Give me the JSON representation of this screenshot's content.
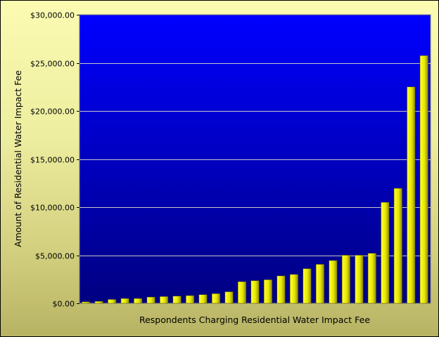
{
  "chart_data": {
    "type": "bar",
    "title": "",
    "xlabel": "Respondents Charging Residential Water Impact Fee",
    "ylabel": "Amount of Residential Water Impact Fee",
    "ylim": [
      0,
      30000
    ],
    "y_ticks": [
      {
        "value": 0,
        "label": "$0.00"
      },
      {
        "value": 5000,
        "label": "$5,000.00"
      },
      {
        "value": 10000,
        "label": "$10,000.00"
      },
      {
        "value": 15000,
        "label": "$15,000.00"
      },
      {
        "value": 20000,
        "label": "$20,000.00"
      },
      {
        "value": 25000,
        "label": "$25,000.00"
      },
      {
        "value": 30000,
        "label": "$30,000.00"
      }
    ],
    "values": [
      150,
      200,
      400,
      500,
      500,
      650,
      700,
      750,
      800,
      900,
      1000,
      1200,
      2250,
      2350,
      2450,
      2850,
      3000,
      3600,
      4050,
      4450,
      5000,
      5000,
      5200,
      10500,
      11950,
      22500,
      25750
    ],
    "grid": true,
    "legend": "none",
    "colors": {
      "plot_top": "#0000ff",
      "plot_bottom": "#000080",
      "bar_light": "#ffff33",
      "bar_dark": "#8c8c00",
      "gridline": "#c8c8c8"
    }
  }
}
